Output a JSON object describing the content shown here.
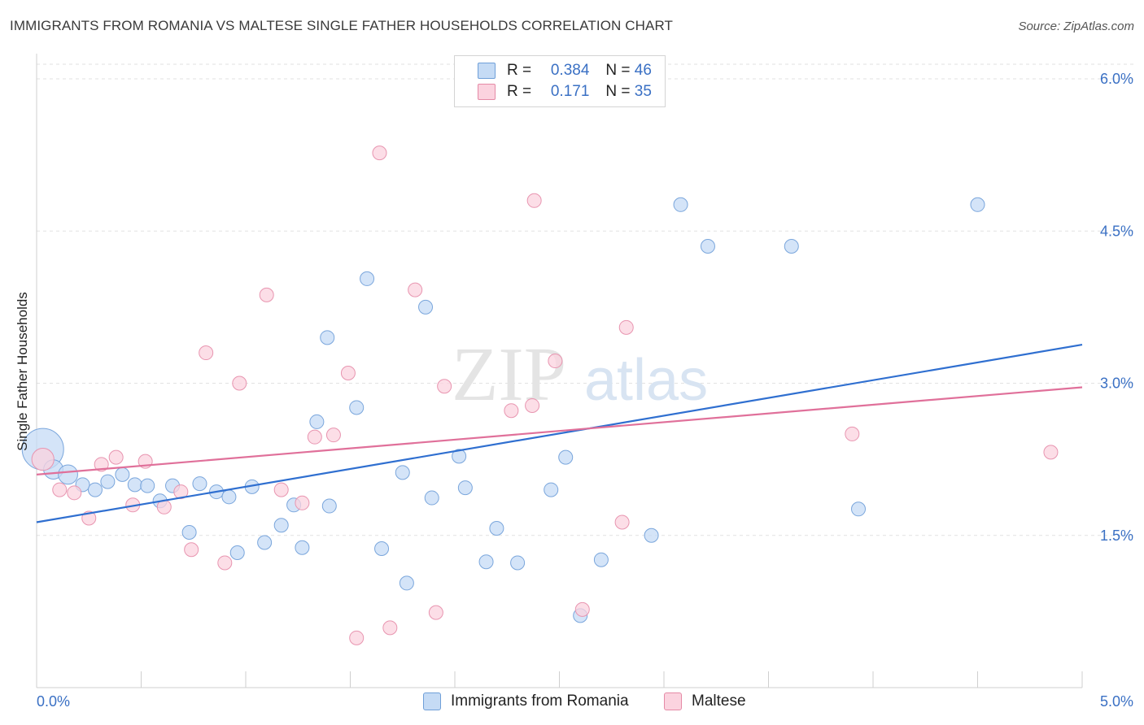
{
  "title": "IMMIGRANTS FROM ROMANIA VS MALTESE SINGLE FATHER HOUSEHOLDS CORRELATION CHART",
  "source": "Source: ZipAtlas.com",
  "watermark": {
    "zip": "ZIP",
    "atlas": "atlas"
  },
  "legend": {
    "r_label": "R =",
    "n_label": "N =",
    "rows": [
      {
        "r": "0.384",
        "n": "46",
        "color": "#a9c8f0",
        "border": "#6f9fd8"
      },
      {
        "r": "0.171",
        "n": "35",
        "color": "#f7bfcf",
        "border": "#e58aa6"
      }
    ]
  },
  "colors": {
    "blue_line": "#2f6fd0",
    "pink_line": "#e0709a",
    "blue_fill": "#c5dbf5",
    "pink_fill": "#fbd3df",
    "axis_text": "#3a70c4"
  },
  "chart_data": {
    "type": "scatter",
    "title": "IMMIGRANTS FROM ROMANIA VS MALTESE SINGLE FATHER HOUSEHOLDS CORRELATION CHART",
    "xlabel": "",
    "ylabel": "Single Father Households",
    "xlim": [
      0,
      5.0
    ],
    "ylim": [
      0,
      6.2
    ],
    "x_tick_labels": [
      "0.0%",
      "5.0%"
    ],
    "y_ticks": [
      1.5,
      3.0,
      4.5,
      6.0
    ],
    "y_tick_labels": [
      "1.5%",
      "3.0%",
      "4.5%",
      "6.0%"
    ],
    "grid": true,
    "legend_position": "top-center",
    "series": [
      {
        "name": "Immigrants from Romania",
        "trend": [
          [
            0,
            1.63
          ],
          [
            5.0,
            3.38
          ]
        ],
        "points": [
          [
            0.03,
            2.35,
            3
          ],
          [
            0.08,
            2.15,
            1.4
          ],
          [
            0.15,
            2.1,
            1.4
          ],
          [
            0.22,
            2.0,
            1
          ],
          [
            0.28,
            1.95,
            1
          ],
          [
            0.34,
            2.03,
            1
          ],
          [
            0.41,
            2.1,
            1
          ],
          [
            0.47,
            2.0,
            1
          ],
          [
            0.53,
            1.99,
            1
          ],
          [
            0.59,
            1.84,
            1
          ],
          [
            0.65,
            1.99,
            1
          ],
          [
            0.73,
            1.53,
            1
          ],
          [
            0.78,
            2.01,
            1
          ],
          [
            0.86,
            1.93,
            1
          ],
          [
            0.92,
            1.88,
            1
          ],
          [
            0.96,
            1.33,
            1
          ],
          [
            1.03,
            1.98,
            1
          ],
          [
            1.09,
            1.43,
            1
          ],
          [
            1.17,
            1.6,
            1
          ],
          [
            1.23,
            1.8,
            1
          ],
          [
            1.27,
            1.38,
            1
          ],
          [
            1.34,
            2.62,
            1
          ],
          [
            1.39,
            3.45,
            1
          ],
          [
            1.4,
            1.79,
            1
          ],
          [
            1.53,
            2.76,
            1
          ],
          [
            1.58,
            4.03,
            1
          ],
          [
            1.65,
            1.37,
            1
          ],
          [
            1.75,
            2.12,
            1
          ],
          [
            1.77,
            1.03,
            1
          ],
          [
            1.86,
            3.75,
            1
          ],
          [
            1.89,
            1.87,
            1
          ],
          [
            2.02,
            2.28,
            1
          ],
          [
            2.05,
            1.97,
            1
          ],
          [
            2.15,
            1.24,
            1
          ],
          [
            2.2,
            1.57,
            1
          ],
          [
            2.3,
            1.23,
            1
          ],
          [
            2.46,
            1.95,
            1
          ],
          [
            2.53,
            2.27,
            1
          ],
          [
            2.6,
            0.71,
            1
          ],
          [
            2.7,
            1.26,
            1
          ],
          [
            2.94,
            1.5,
            1
          ],
          [
            3.08,
            4.76,
            1
          ],
          [
            3.21,
            4.35,
            1
          ],
          [
            3.61,
            4.35,
            1
          ],
          [
            3.93,
            1.76,
            1
          ],
          [
            4.5,
            4.76,
            1
          ]
        ]
      },
      {
        "name": "Maltese",
        "trend": [
          [
            0,
            2.1
          ],
          [
            5.0,
            2.96
          ]
        ],
        "points": [
          [
            0.03,
            2.25,
            1.6
          ],
          [
            0.11,
            1.95,
            1
          ],
          [
            0.18,
            1.92,
            1
          ],
          [
            0.25,
            1.67,
            1
          ],
          [
            0.31,
            2.2,
            1
          ],
          [
            0.38,
            2.27,
            1
          ],
          [
            0.46,
            1.8,
            1
          ],
          [
            0.52,
            2.23,
            1
          ],
          [
            0.61,
            1.78,
            1
          ],
          [
            0.69,
            1.93,
            1
          ],
          [
            0.74,
            1.36,
            1
          ],
          [
            0.81,
            3.3,
            1
          ],
          [
            0.9,
            1.23,
            1
          ],
          [
            0.97,
            3.0,
            1
          ],
          [
            1.1,
            3.87,
            1
          ],
          [
            1.17,
            1.95,
            1
          ],
          [
            1.27,
            1.82,
            1
          ],
          [
            1.33,
            2.47,
            1
          ],
          [
            1.42,
            2.49,
            1
          ],
          [
            1.49,
            3.1,
            1
          ],
          [
            1.53,
            0.49,
            1
          ],
          [
            1.64,
            5.27,
            1
          ],
          [
            1.69,
            0.59,
            1
          ],
          [
            1.81,
            3.92,
            1
          ],
          [
            1.91,
            0.74,
            1
          ],
          [
            1.95,
            2.97,
            1
          ],
          [
            2.27,
            2.73,
            1
          ],
          [
            2.37,
            2.78,
            1
          ],
          [
            2.38,
            4.8,
            1
          ],
          [
            2.48,
            3.22,
            1
          ],
          [
            2.61,
            0.77,
            1
          ],
          [
            2.8,
            1.63,
            1
          ],
          [
            2.82,
            3.55,
            1
          ],
          [
            3.9,
            2.5,
            1
          ],
          [
            4.85,
            2.32,
            1
          ]
        ]
      }
    ]
  }
}
